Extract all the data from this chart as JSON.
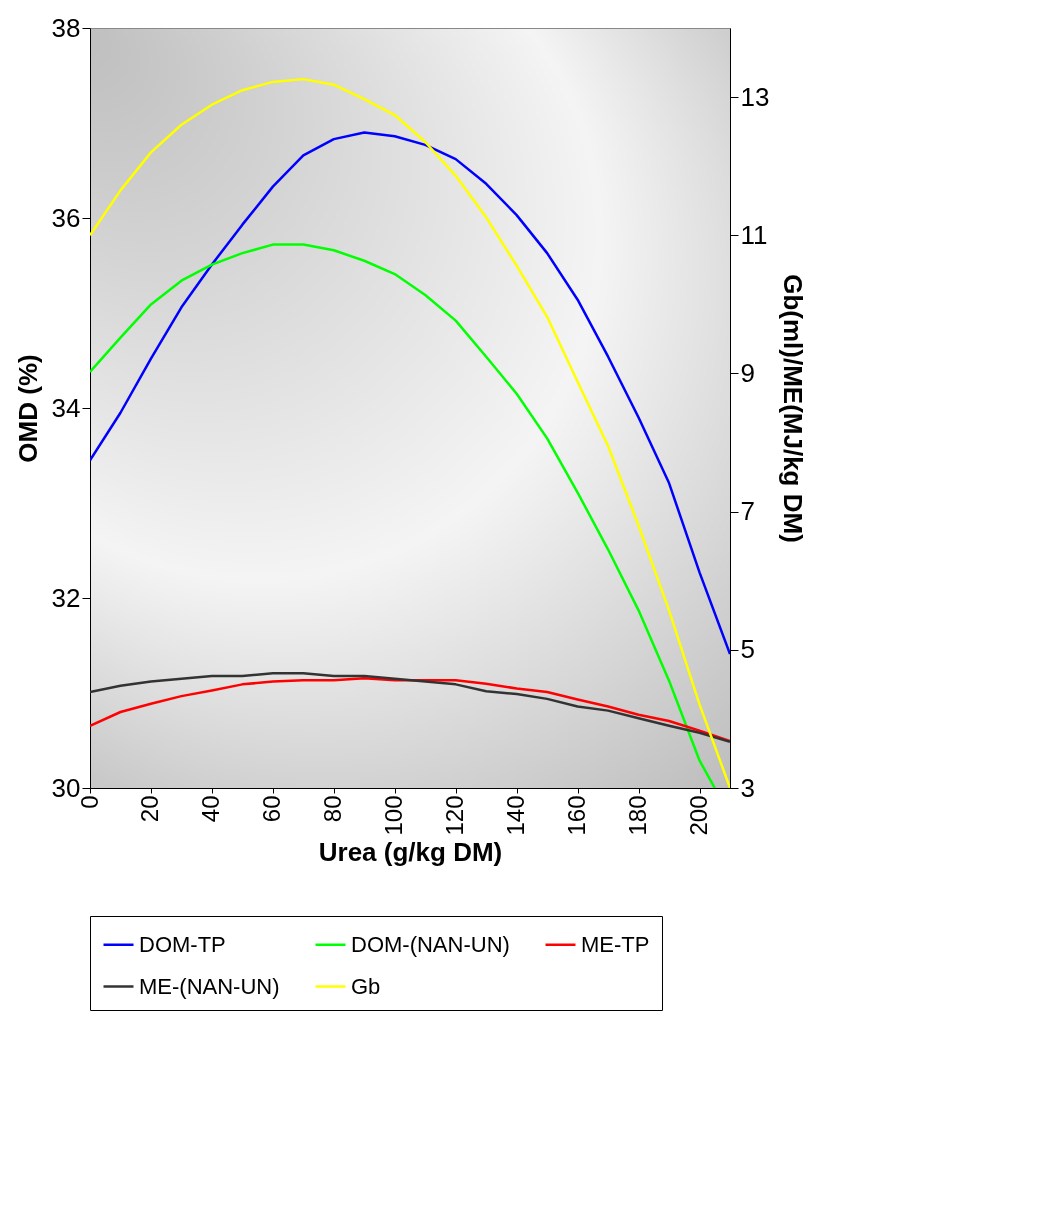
{
  "chart_data": {
    "type": "line",
    "xlabel": "Urea (g/kg DM)",
    "ylabel": "OMD (%)",
    "y2label": "Gb(ml)/ME(MJ/kg DM)",
    "x": [
      0,
      10,
      20,
      30,
      40,
      50,
      60,
      70,
      80,
      90,
      100,
      110,
      120,
      130,
      140,
      150,
      160,
      170,
      180,
      190,
      200,
      210
    ],
    "xlim": [
      0,
      210
    ],
    "xticks": [
      0,
      20,
      40,
      60,
      80,
      100,
      120,
      140,
      160,
      180,
      200
    ],
    "ylim": [
      30,
      38
    ],
    "yticks": [
      30,
      32,
      34,
      36,
      38
    ],
    "y2lim": [
      3,
      14
    ],
    "y2ticks": [
      3,
      5,
      7,
      9,
      11,
      13
    ],
    "legend": "bottom",
    "grid": false,
    "marker": "none",
    "line_style": "solid",
    "series": [
      {
        "name": "DOM-TP",
        "color": "#0000ff",
        "values": [
          33.45,
          33.95,
          34.52,
          35.06,
          35.51,
          35.93,
          36.33,
          36.66,
          36.83,
          36.9,
          36.86,
          36.77,
          36.62,
          36.36,
          36.03,
          35.63,
          35.14,
          34.54,
          33.9,
          33.21,
          32.27,
          31.41
        ]
      },
      {
        "name": "DOM-(NAN-UN)",
        "color": "#00ff00",
        "x": [
          0,
          10,
          20,
          30,
          40,
          50,
          60,
          70,
          80,
          90,
          100,
          110,
          120,
          130,
          140,
          150,
          160,
          170,
          180,
          190,
          200,
          205
        ],
        "values": [
          34.38,
          34.74,
          35.09,
          35.34,
          35.51,
          35.63,
          35.72,
          35.72,
          35.66,
          35.55,
          35.41,
          35.19,
          34.92,
          34.54,
          34.15,
          33.68,
          33.11,
          32.51,
          31.87,
          31.13,
          30.29,
          30.0
        ]
      },
      {
        "name": "ME-TP",
        "color": "#ff0000",
        "axis": "y2",
        "values": [
          3.9,
          4.1,
          4.22,
          4.33,
          4.41,
          4.5,
          4.54,
          4.56,
          4.56,
          4.59,
          4.56,
          4.56,
          4.56,
          4.51,
          4.44,
          4.39,
          4.28,
          4.18,
          4.06,
          3.97,
          3.83,
          3.68
        ]
      },
      {
        "name": "ME-(NAN-UN)",
        "color": "#333333",
        "axis": "y2",
        "values": [
          4.39,
          4.48,
          4.54,
          4.58,
          4.62,
          4.62,
          4.66,
          4.66,
          4.62,
          4.62,
          4.58,
          4.54,
          4.5,
          4.4,
          4.36,
          4.29,
          4.18,
          4.12,
          4.01,
          3.9,
          3.8,
          3.67
        ]
      },
      {
        "name": "Gb",
        "color": "#ffff00",
        "axis": "y2",
        "values": [
          11.0,
          11.65,
          12.2,
          12.6,
          12.89,
          13.1,
          13.22,
          13.26,
          13.18,
          12.97,
          12.74,
          12.35,
          11.86,
          11.26,
          10.56,
          9.82,
          8.88,
          7.95,
          6.8,
          5.57,
          4.21,
          3.0
        ]
      }
    ]
  }
}
